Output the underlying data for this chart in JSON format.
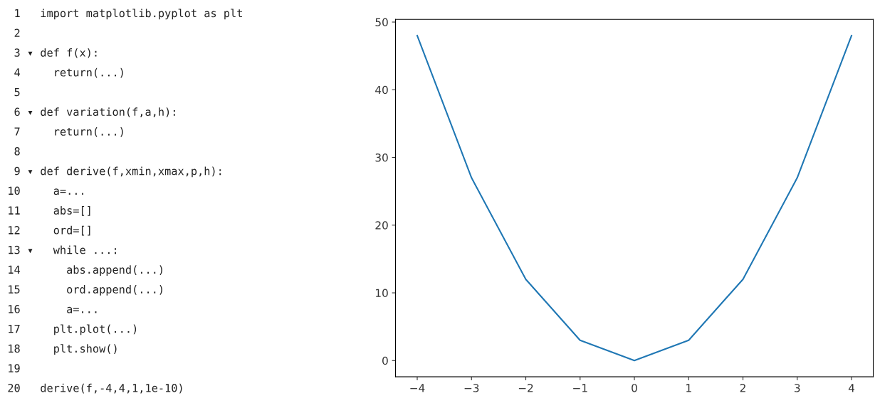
{
  "chart_data": [
    {
      "type": "other",
      "annotations": [
        " 1   import matplotlib.pyplot as plt",
        " 2",
        " 3 ▾ def f(x):",
        " 4     return(...)",
        " 5",
        " 6 ▾ def variation(f,a,h):",
        " 7     return(...)",
        " 8",
        " 9 ▾ def derive(f,xmin,xmax,p,h):",
        "10     a=...",
        "11     abs=[]",
        "12     ord=[]",
        "13 ▾   while ...:",
        "14       abs.append(...)",
        "15       ord.append(...)",
        "16       a=...",
        "17     plt.plot(...)",
        "18     plt.show()",
        "19",
        "20   derive(f,-4,4,1,1e-10)"
      ]
    },
    {
      "type": "line",
      "x": [
        -4,
        -3,
        -2,
        -1,
        0,
        1,
        2,
        3,
        4
      ],
      "series": [
        {
          "color": "#1f77b4",
          "values": [
            48,
            27,
            12,
            3,
            0,
            3,
            12,
            27,
            48
          ]
        }
      ],
      "xlim": [
        -4.4,
        4.4
      ],
      "ylim": [
        -2.4,
        50.4
      ],
      "xticks": [
        {
          "value": -4,
          "label": "−4"
        },
        {
          "value": -3,
          "label": "−3"
        },
        {
          "value": -2,
          "label": "−2"
        },
        {
          "value": -1,
          "label": "−1"
        },
        0,
        1,
        2,
        3,
        4
      ],
      "yticks": [
        0,
        10,
        20,
        30,
        40,
        50
      ],
      "grid": false,
      "marker": "none",
      "line_style": "solid"
    }
  ]
}
